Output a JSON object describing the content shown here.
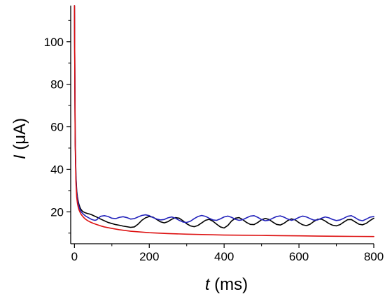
{
  "chart_data": {
    "type": "line",
    "title": "",
    "xlabel": {
      "symbol": "t",
      "unit": " (ms)"
    },
    "ylabel": {
      "symbol": "I",
      "unit": " (μA)"
    },
    "xlim": [
      -10,
      800
    ],
    "ylim": [
      5,
      117
    ],
    "xticks": [
      0,
      200,
      400,
      600,
      800
    ],
    "yticks": [
      20,
      40,
      60,
      80,
      100
    ],
    "grid": false,
    "legend": "none",
    "series": [
      {
        "color": "#000000",
        "x": [
          0,
          2,
          4,
          6,
          8,
          10,
          12,
          15,
          18,
          22,
          26,
          30,
          35,
          40,
          45,
          50,
          55,
          60,
          70,
          80,
          90,
          100,
          110,
          120,
          130,
          140,
          150,
          160,
          170,
          180,
          190,
          200,
          210,
          220,
          230,
          240,
          250,
          260,
          270,
          280,
          290,
          300,
          310,
          320,
          330,
          340,
          350,
          360,
          370,
          380,
          390,
          400,
          410,
          420,
          430,
          440,
          450,
          460,
          470,
          480,
          490,
          500,
          510,
          520,
          530,
          540,
          550,
          560,
          570,
          580,
          590,
          600,
          610,
          620,
          630,
          640,
          650,
          660,
          670,
          680,
          690,
          700,
          710,
          720,
          730,
          740,
          750,
          760,
          770,
          780,
          790,
          800
        ],
        "y": [
          117,
          55,
          37,
          30,
          27,
          25,
          23.5,
          22,
          21,
          20.2,
          19.8,
          19.5,
          19.2,
          19.0,
          18.7,
          18.3,
          17.9,
          17.5,
          16.6,
          15.8,
          15.0,
          14.5,
          14.0,
          13.7,
          13.3,
          13.0,
          12.7,
          12.9,
          14.2,
          16.0,
          17.2,
          17.8,
          17.5,
          16.4,
          15.3,
          14.8,
          15.4,
          16.5,
          17.3,
          17.0,
          15.8,
          14.4,
          13.4,
          13.0,
          13.6,
          14.8,
          16.0,
          16.5,
          15.6,
          14.2,
          12.9,
          12.4,
          13.6,
          15.7,
          17.0,
          17.3,
          16.3,
          15.0,
          14.1,
          14.0,
          15.0,
          16.3,
          16.9,
          16.4,
          15.2,
          14.1,
          13.8,
          14.6,
          15.9,
          16.7,
          16.2,
          14.9,
          13.9,
          13.5,
          14.2,
          15.5,
          16.5,
          16.6,
          15.7,
          14.5,
          13.7,
          13.4,
          14.0,
          15.2,
          16.3,
          16.4,
          15.3,
          14.2,
          13.9,
          14.6,
          15.9,
          17.0
        ]
      },
      {
        "color": "#2222bb",
        "x": [
          0,
          2,
          4,
          6,
          8,
          10,
          12,
          15,
          18,
          22,
          26,
          30,
          35,
          40,
          45,
          50,
          55,
          60,
          65,
          70,
          80,
          90,
          100,
          110,
          120,
          130,
          140,
          150,
          160,
          170,
          180,
          190,
          200,
          210,
          220,
          230,
          240,
          250,
          260,
          270,
          280,
          290,
          300,
          310,
          320,
          330,
          340,
          350,
          360,
          370,
          380,
          390,
          400,
          410,
          420,
          430,
          440,
          450,
          460,
          470,
          480,
          490,
          500,
          510,
          520,
          530,
          540,
          550,
          560,
          570,
          580,
          590,
          600,
          610,
          620,
          630,
          640,
          650,
          660,
          670,
          680,
          690,
          700,
          710,
          720,
          730,
          740,
          750,
          760,
          770,
          780,
          790,
          800
        ],
        "y": [
          117,
          55,
          36,
          29,
          26,
          24,
          22.5,
          21,
          20,
          19.2,
          18.6,
          18.0,
          17.5,
          17.0,
          16.5,
          16.2,
          16.0,
          16.3,
          17.2,
          17.9,
          18.2,
          17.8,
          17.0,
          16.8,
          17.4,
          17.7,
          17.3,
          16.6,
          16.8,
          17.6,
          18.3,
          18.6,
          18.2,
          17.3,
          16.6,
          16.2,
          16.4,
          17.2,
          17.6,
          17.0,
          16.0,
          15.2,
          15.0,
          15.6,
          16.8,
          17.8,
          18.3,
          17.9,
          17.0,
          16.2,
          16.0,
          16.7,
          17.6,
          18.0,
          17.4,
          16.5,
          16.0,
          16.3,
          17.2,
          18.0,
          18.2,
          17.4,
          16.4,
          15.8,
          16.1,
          17.0,
          17.8,
          18.1,
          17.5,
          16.6,
          16.0,
          16.5,
          17.4,
          18.0,
          17.6,
          16.8,
          16.1,
          16.2,
          17.0,
          17.6,
          17.2,
          16.4,
          15.9,
          16.2,
          17.0,
          17.9,
          18.2,
          17.3,
          16.2,
          15.8,
          16.6,
          17.5,
          17.8
        ]
      },
      {
        "color": "#dd1111",
        "x": [
          0,
          2,
          4,
          6,
          8,
          10,
          12,
          15,
          18,
          22,
          26,
          30,
          35,
          40,
          50,
          60,
          70,
          80,
          100,
          120,
          150,
          200,
          250,
          300,
          350,
          400,
          450,
          500,
          550,
          600,
          650,
          700,
          750,
          800
        ],
        "y": [
          117,
          52,
          34,
          27,
          24,
          22.3,
          21,
          19.8,
          18.8,
          17.9,
          17.1,
          16.5,
          15.9,
          15.4,
          14.6,
          14.0,
          13.4,
          12.9,
          12.2,
          11.6,
          10.9,
          10.2,
          9.8,
          9.5,
          9.3,
          9.1,
          9.0,
          8.9,
          8.8,
          8.7,
          8.6,
          8.5,
          8.45,
          8.4
        ]
      }
    ]
  }
}
